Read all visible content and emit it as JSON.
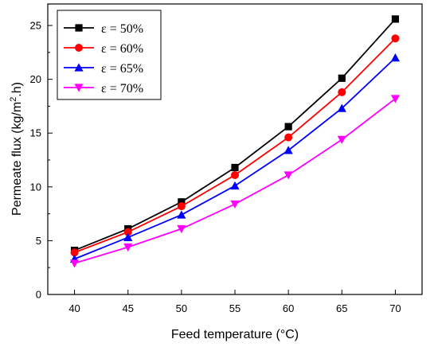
{
  "chart_data": {
    "type": "line",
    "xlabel": "Feed temperature (°C)",
    "ylabel_main": "Permeate flux (kg/m",
    "ylabel_sup": "2",
    "ylabel_tail": ".h)",
    "x": [
      40,
      45,
      50,
      55,
      60,
      65,
      70
    ],
    "xlim": [
      37.5,
      72.5
    ],
    "ylim": [
      0,
      27
    ],
    "xticks": [
      40,
      45,
      50,
      55,
      60,
      65,
      70
    ],
    "yticks": [
      0,
      5,
      10,
      15,
      20,
      25
    ],
    "grid": false,
    "legend_position": "top-left",
    "series": [
      {
        "name": "ε = 50%",
        "color": "#000000",
        "marker": "square",
        "values": [
          4.1,
          6.1,
          8.6,
          11.8,
          15.6,
          20.1,
          25.6
        ]
      },
      {
        "name": "ε = 60%",
        "color": "#ff0000",
        "marker": "circle",
        "values": [
          3.9,
          5.8,
          8.2,
          11.1,
          14.6,
          18.8,
          23.8
        ]
      },
      {
        "name": "ε = 65%",
        "color": "#0000ff",
        "marker": "triangle-up",
        "values": [
          3.3,
          5.3,
          7.4,
          10.1,
          13.4,
          17.3,
          22.0
        ]
      },
      {
        "name": "ε = 70%",
        "color": "#ff00ff",
        "marker": "triangle-down",
        "values": [
          2.9,
          4.4,
          6.1,
          8.4,
          11.1,
          14.4,
          18.2
        ]
      }
    ]
  }
}
